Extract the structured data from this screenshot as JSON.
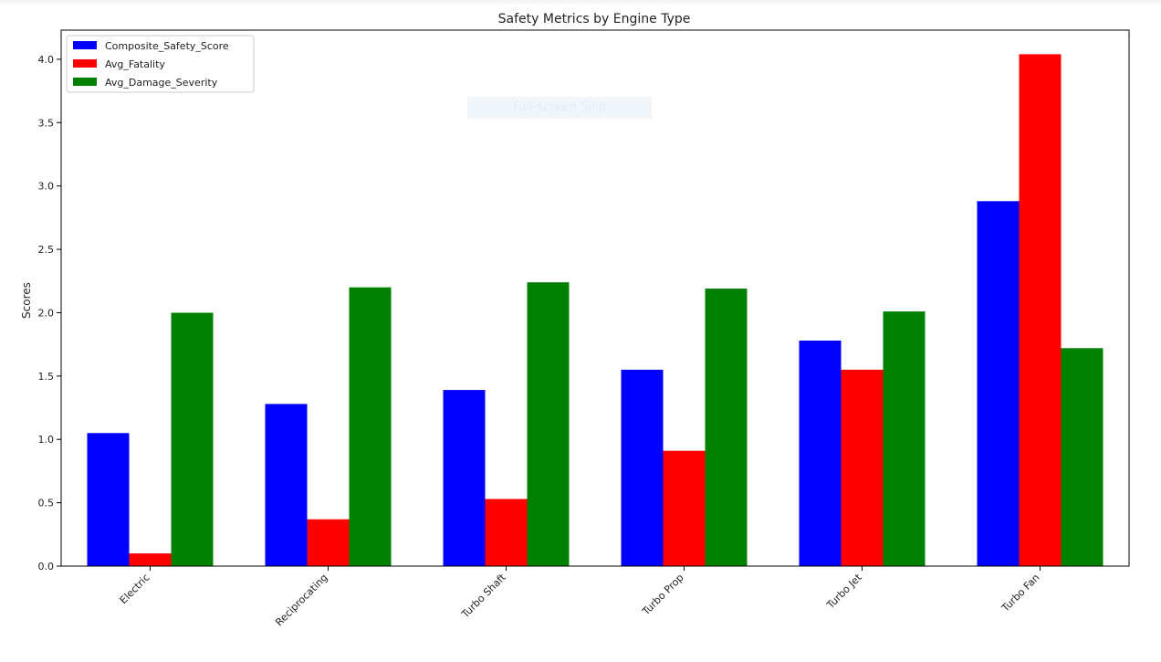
{
  "overlay": {
    "snip_label": "Full-screen Snip"
  },
  "chart_data": {
    "type": "bar",
    "title": "Safety Metrics by Engine Type",
    "xlabel": "",
    "ylabel": "Scores",
    "ylim": [
      0,
      4.23
    ],
    "yticks": [
      "0.0",
      "0.5",
      "1.0",
      "1.5",
      "2.0",
      "2.5",
      "3.0",
      "3.5",
      "4.0"
    ],
    "categories": [
      "Electric",
      "Reciprocating",
      "Turbo Shaft",
      "Turbo Prop",
      "Turbo Jet",
      "Turbo Fan"
    ],
    "series": [
      {
        "name": "Composite_Safety_Score",
        "color": "#0000ff",
        "values": [
          1.05,
          1.28,
          1.39,
          1.55,
          1.78,
          2.88
        ]
      },
      {
        "name": "Avg_Fatality",
        "color": "#ff0000",
        "values": [
          0.1,
          0.37,
          0.53,
          0.91,
          1.55,
          4.04
        ]
      },
      {
        "name": "Avg_Damage_Severity",
        "color": "#008000",
        "values": [
          2.0,
          2.2,
          2.24,
          2.19,
          2.01,
          1.72
        ]
      }
    ],
    "legend": "top-left",
    "grid": false
  }
}
